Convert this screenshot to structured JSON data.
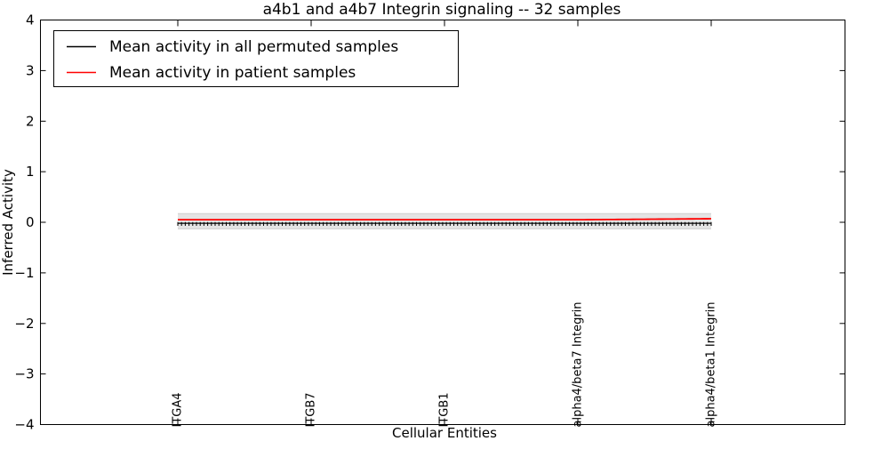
{
  "figure": {
    "background": "#ffffff"
  },
  "chart_data": {
    "type": "line",
    "title": "a4b1 and a4b7 Integrin signaling -- 32 samples",
    "xlabel": "Cellular Entities",
    "ylabel": "Inferred Activity",
    "ylim": [
      -4,
      4
    ],
    "yticks": [
      -4,
      -3,
      -2,
      -1,
      0,
      1,
      2,
      3,
      4
    ],
    "ytick_labels": [
      "−4",
      "−3",
      "−2",
      "−1",
      "0",
      "1",
      "2",
      "3",
      "4"
    ],
    "x_tick_labels": [
      "ITGA4",
      "ITGB7",
      "ITGB1",
      "alpha4/beta7 Integrin",
      "alpha4/beta1 Integrin"
    ],
    "grid": false,
    "legend_position": "upper left",
    "n_points": 144,
    "band": {
      "lower": -0.13,
      "upper": 0.17,
      "color": "#e4e4e4",
      "edge_color": "#cfcfcf"
    },
    "series": [
      {
        "name": "Mean activity in all permuted samples",
        "color": "#000000",
        "marker": "|",
        "values": [
          -0.02,
          -0.02,
          -0.02,
          -0.02,
          -0.02
        ]
      },
      {
        "name": "Mean activity in patient samples",
        "color": "#ff0000",
        "marker": "none",
        "values": [
          0.05,
          0.05,
          0.05,
          0.05,
          0.07
        ]
      }
    ]
  }
}
